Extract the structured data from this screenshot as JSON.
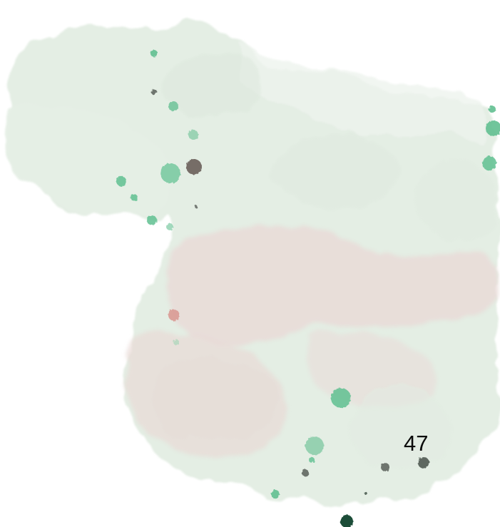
{
  "page": {
    "number_label": "47"
  },
  "palette": {
    "wash_green": "#e3ede3",
    "wash_green_light": "#ecf3ec",
    "wash_rose": "#e8d9d5",
    "speck_green": "#5fbf90",
    "speck_dark": "#5a5f5a",
    "speck_deep": "#1d4d38",
    "speck_rose": "#d99a94"
  }
}
